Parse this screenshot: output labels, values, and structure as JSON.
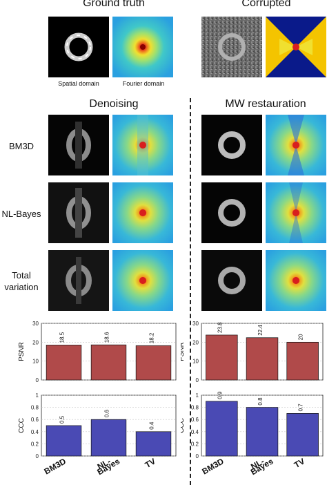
{
  "headers": {
    "ground_truth": "Ground truth",
    "corrupted": "Corrupted",
    "denoising": "Denoising",
    "mw_restauration": "MW restauration"
  },
  "captions": {
    "spatial": "Spatial domain",
    "fourier": "Fourier domain"
  },
  "row_labels": {
    "bm3d": "BM3D",
    "nl_bayes": "NL-Bayes",
    "tv_line1": "Total",
    "tv_line2": "variation"
  },
  "colors": {
    "psnr_bar": "#b04a4a",
    "ccc_bar": "#4a4ab4",
    "fourier_center": "#d81e1e",
    "fourier_mid": "#f0e030",
    "fourier_outer": "#30b8d8",
    "mask_blue": "#0a1a8a"
  },
  "chart_data": [
    {
      "type": "bar",
      "panel": "denoising",
      "ylabel": "PSNR",
      "categories": [
        "BM3D",
        "NL-Bayes",
        "TV"
      ],
      "values": [
        18.5,
        18.6,
        18.2
      ],
      "value_labels": [
        "18.5",
        "18.6",
        "18.2"
      ],
      "ylim": [
        0,
        30
      ],
      "yticks": [
        "0",
        "10",
        "20",
        "30"
      ],
      "grid": true
    },
    {
      "type": "bar",
      "panel": "mw_restauration",
      "ylabel": "PSNR",
      "categories": [
        "BM3D",
        "NL-Bayes",
        "TV"
      ],
      "values": [
        23.8,
        22.4,
        20
      ],
      "value_labels": [
        "23.8",
        "22.4",
        "20"
      ],
      "ylim": [
        0,
        30
      ],
      "yticks": [
        "0",
        "10",
        "20",
        "30"
      ],
      "grid": true
    },
    {
      "type": "bar",
      "panel": "denoising",
      "ylabel": "CCC",
      "categories": [
        "BM3D",
        "NL-Bayes",
        "TV"
      ],
      "values": [
        0.5,
        0.6,
        0.4
      ],
      "value_labels": [
        "0.5",
        "0.6",
        "0.4"
      ],
      "ylim": [
        0,
        1
      ],
      "yticks": [
        "0",
        "0.2",
        "0.4",
        "0.6",
        "0.8",
        "1"
      ],
      "grid": true
    },
    {
      "type": "bar",
      "panel": "mw_restauration",
      "ylabel": "CCC",
      "categories": [
        "BM3D",
        "NL-Bayes",
        "TV"
      ],
      "values": [
        0.9,
        0.8,
        0.7
      ],
      "value_labels": [
        "0.9",
        "0.8",
        "0.7"
      ],
      "ylim": [
        0,
        1
      ],
      "yticks": [
        "0",
        "0.2",
        "0.4",
        "0.6",
        "0.8",
        "1"
      ],
      "grid": true
    }
  ],
  "x_axis_labels": {
    "left": [
      "BM3D",
      "NL-\nBayes",
      "TV"
    ],
    "right": [
      "BM3D",
      "NL-\nBayes",
      "TV"
    ]
  }
}
